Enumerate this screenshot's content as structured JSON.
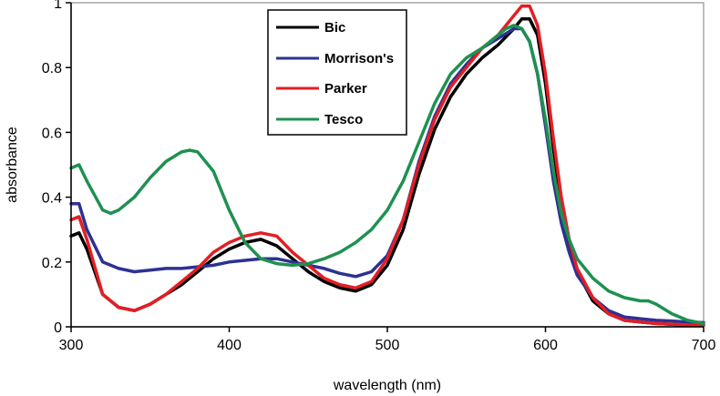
{
  "chart_data": {
    "type": "line",
    "title": "",
    "xlabel": "wavelength (nm)",
    "ylabel": "absorbance",
    "xlim": [
      300,
      700
    ],
    "ylim": [
      0,
      1
    ],
    "x_ticks": [
      300,
      400,
      500,
      600,
      700
    ],
    "y_ticks": [
      0,
      0.2,
      0.4,
      0.6,
      0.8,
      1
    ],
    "y_tick_labels": [
      "0",
      "0.2",
      "0.4",
      "0.6",
      "0.8",
      "1"
    ],
    "grid": false,
    "legend_position": "top-center",
    "series": [
      {
        "name": "Bic",
        "color": "#000000",
        "x": [
          300,
          305,
          310,
          320,
          330,
          340,
          350,
          360,
          370,
          380,
          390,
          400,
          410,
          420,
          430,
          440,
          450,
          460,
          470,
          480,
          490,
          500,
          510,
          520,
          530,
          540,
          550,
          560,
          570,
          580,
          585,
          590,
          595,
          600,
          605,
          610,
          615,
          620,
          630,
          640,
          650,
          660,
          670,
          680,
          690,
          700
        ],
        "y": [
          0.28,
          0.29,
          0.24,
          0.1,
          0.06,
          0.05,
          0.07,
          0.1,
          0.13,
          0.17,
          0.21,
          0.24,
          0.26,
          0.27,
          0.25,
          0.21,
          0.17,
          0.14,
          0.12,
          0.11,
          0.13,
          0.19,
          0.3,
          0.47,
          0.61,
          0.71,
          0.78,
          0.83,
          0.87,
          0.92,
          0.95,
          0.95,
          0.9,
          0.75,
          0.55,
          0.38,
          0.25,
          0.17,
          0.08,
          0.04,
          0.02,
          0.015,
          0.01,
          0.008,
          0.005,
          0.005
        ]
      },
      {
        "name": "Morrison's",
        "color": "#2e3192",
        "x": [
          300,
          305,
          310,
          320,
          330,
          340,
          350,
          360,
          370,
          380,
          390,
          400,
          410,
          420,
          430,
          440,
          450,
          460,
          470,
          480,
          490,
          500,
          510,
          520,
          530,
          540,
          550,
          560,
          570,
          580,
          585,
          590,
          595,
          600,
          605,
          610,
          615,
          620,
          630,
          640,
          650,
          660,
          670,
          680,
          690,
          700
        ],
        "y": [
          0.38,
          0.38,
          0.3,
          0.2,
          0.18,
          0.17,
          0.175,
          0.18,
          0.18,
          0.185,
          0.19,
          0.2,
          0.205,
          0.21,
          0.21,
          0.2,
          0.19,
          0.18,
          0.165,
          0.155,
          0.17,
          0.22,
          0.33,
          0.51,
          0.65,
          0.75,
          0.81,
          0.86,
          0.89,
          0.92,
          0.92,
          0.88,
          0.78,
          0.62,
          0.45,
          0.32,
          0.23,
          0.16,
          0.09,
          0.05,
          0.03,
          0.025,
          0.02,
          0.018,
          0.015,
          0.013
        ]
      },
      {
        "name": "Parker",
        "color": "#e31e24",
        "x": [
          300,
          305,
          310,
          320,
          330,
          340,
          350,
          360,
          370,
          380,
          390,
          400,
          410,
          420,
          430,
          440,
          450,
          460,
          470,
          480,
          490,
          500,
          510,
          520,
          530,
          540,
          550,
          560,
          570,
          580,
          585,
          590,
          595,
          600,
          605,
          610,
          615,
          620,
          630,
          640,
          650,
          660,
          670,
          680,
          690,
          700
        ],
        "y": [
          0.33,
          0.34,
          0.27,
          0.1,
          0.06,
          0.05,
          0.07,
          0.1,
          0.14,
          0.18,
          0.23,
          0.26,
          0.28,
          0.29,
          0.28,
          0.23,
          0.19,
          0.15,
          0.13,
          0.12,
          0.14,
          0.21,
          0.33,
          0.5,
          0.64,
          0.74,
          0.8,
          0.86,
          0.9,
          0.96,
          0.99,
          0.99,
          0.93,
          0.78,
          0.58,
          0.4,
          0.27,
          0.18,
          0.09,
          0.04,
          0.02,
          0.015,
          0.01,
          0.008,
          0.006,
          0.005
        ]
      },
      {
        "name": "Tesco",
        "color": "#1e9150",
        "x": [
          300,
          305,
          310,
          320,
          325,
          330,
          340,
          350,
          360,
          370,
          375,
          380,
          390,
          400,
          410,
          420,
          430,
          440,
          450,
          460,
          470,
          480,
          490,
          500,
          510,
          520,
          530,
          540,
          550,
          560,
          570,
          575,
          580,
          585,
          590,
          595,
          600,
          605,
          610,
          615,
          620,
          630,
          640,
          650,
          660,
          665,
          670,
          680,
          690,
          700
        ],
        "y": [
          0.49,
          0.5,
          0.45,
          0.36,
          0.35,
          0.36,
          0.4,
          0.46,
          0.51,
          0.54,
          0.545,
          0.54,
          0.48,
          0.36,
          0.26,
          0.21,
          0.195,
          0.19,
          0.195,
          0.21,
          0.23,
          0.26,
          0.3,
          0.36,
          0.45,
          0.57,
          0.69,
          0.78,
          0.83,
          0.86,
          0.9,
          0.92,
          0.93,
          0.92,
          0.88,
          0.78,
          0.64,
          0.48,
          0.35,
          0.27,
          0.21,
          0.15,
          0.11,
          0.09,
          0.08,
          0.08,
          0.07,
          0.04,
          0.02,
          0.01
        ]
      }
    ]
  }
}
